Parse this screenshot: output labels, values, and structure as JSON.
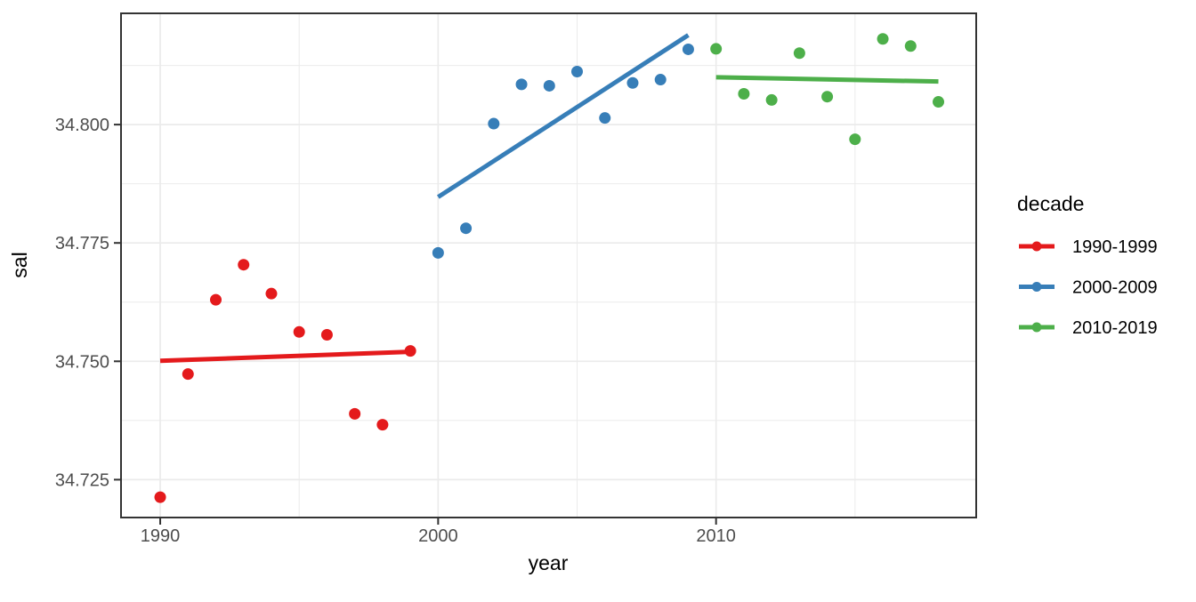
{
  "chart_data": {
    "type": "scatter",
    "title": "",
    "xlabel": "year",
    "ylabel": "sal",
    "grid": true,
    "background": "#ffffff",
    "panel_background": "#ffffff",
    "grid_color": "#ebebeb",
    "border_color": "#333333",
    "tick_color": "#333333",
    "tick_label_color": "#4d4d4d",
    "xlim": [
      1988.59,
      2019.36
    ],
    "ylim": [
      34.717,
      34.8235
    ],
    "x_ticks": {
      "values": [
        1990,
        2000,
        2010
      ],
      "labels": [
        "1990",
        "2000",
        "2010"
      ]
    },
    "x_minor_gridlines": [
      1995,
      2005,
      2015
    ],
    "y_ticks": {
      "values": [
        34.725,
        34.75,
        34.775,
        34.8
      ],
      "labels": [
        "34.725",
        "34.750",
        "34.775",
        "34.800"
      ]
    },
    "y_minor_gridlines": [
      34.7375,
      34.7625,
      34.7875,
      34.8125
    ],
    "legend": {
      "title": "decade",
      "position": "right",
      "entries": [
        "1990-1999",
        "2000-2009",
        "2010-2019"
      ]
    },
    "series": [
      {
        "name": "1990-1999",
        "color": "#e41a1c",
        "points": [
          [
            1990,
            34.7213
          ],
          [
            1991,
            34.7473
          ],
          [
            1992,
            34.763
          ],
          [
            1993,
            34.7704
          ],
          [
            1994,
            34.7643
          ],
          [
            1995,
            34.7562
          ],
          [
            1996,
            34.7556
          ],
          [
            1997,
            34.7389
          ],
          [
            1998,
            34.7366
          ],
          [
            1999,
            34.7522
          ]
        ],
        "trend": {
          "x": [
            1990,
            1999
          ],
          "y": [
            34.7501,
            34.752
          ]
        }
      },
      {
        "name": "2000-2009",
        "color": "#377eb8",
        "points": [
          [
            2000,
            34.7729
          ],
          [
            2001,
            34.7781
          ],
          [
            2002,
            34.8002
          ],
          [
            2003,
            34.8085
          ],
          [
            2004,
            34.8082
          ],
          [
            2005,
            34.8112
          ],
          [
            2006,
            34.8014
          ],
          [
            2007,
            34.8088
          ],
          [
            2008,
            34.8095
          ],
          [
            2009,
            34.8159
          ]
        ],
        "trend": {
          "x": [
            2000,
            2009
          ],
          "y": [
            34.7847,
            34.8189
          ]
        }
      },
      {
        "name": "2010-2019",
        "color": "#4daf4a",
        "points": [
          [
            2010,
            34.816
          ],
          [
            2011,
            34.8065
          ],
          [
            2012,
            34.8052
          ],
          [
            2013,
            34.8151
          ],
          [
            2014,
            34.8059
          ],
          [
            2015,
            34.7969
          ],
          [
            2016,
            34.8181
          ],
          [
            2017,
            34.8166
          ],
          [
            2018,
            34.8048
          ]
        ],
        "trend": {
          "x": [
            2010,
            2018
          ],
          "y": [
            34.81,
            34.8091
          ]
        }
      }
    ]
  }
}
